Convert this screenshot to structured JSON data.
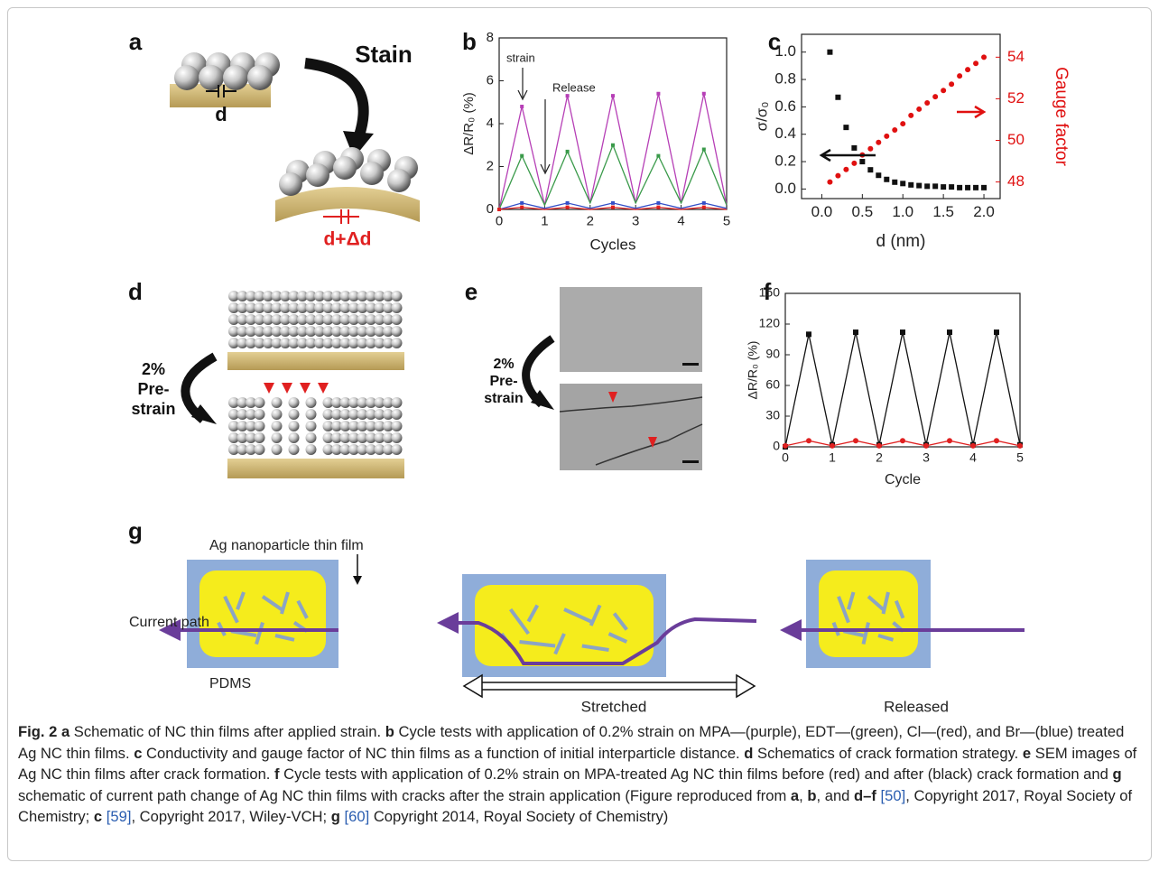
{
  "panels": {
    "a": "a",
    "b": "b",
    "c": "c",
    "d": "d",
    "e": "e",
    "f": "f",
    "g": "g"
  },
  "schematic_a": {
    "gap": "d",
    "action": "Stain",
    "gap_strained": "d+Δd"
  },
  "schematic_d": {
    "step": [
      "2%",
      "Pre-",
      "strain"
    ]
  },
  "schematic_e": {
    "step": [
      "2%",
      "Pre-",
      "strain"
    ]
  },
  "schematic_g": {
    "film": "Ag nanoparticle thin film",
    "path": "Current path",
    "substrate": "PDMS",
    "state_1": "Stretched",
    "state_2": "Released"
  },
  "chart_data": [
    {
      "type": "line",
      "ylabel": "ΔR/R₀ (%)",
      "xlabel": "Cycles",
      "annotations": [
        "strain",
        "Release"
      ],
      "x": [
        0,
        0.5,
        1,
        1.5,
        2,
        2.5,
        3,
        3.5,
        4,
        4.5,
        5
      ],
      "series": [
        {
          "color": "#b63fb6",
          "values": [
            0,
            4.8,
            0.2,
            5.3,
            0.3,
            5.3,
            0.3,
            5.4,
            0.3,
            5.4,
            0.2
          ]
        },
        {
          "color": "#3a9a4a",
          "values": [
            0,
            2.5,
            0.2,
            2.7,
            0.3,
            3.0,
            0.3,
            2.5,
            0.3,
            2.8,
            0.2
          ]
        },
        {
          "color": "#3550c8",
          "values": [
            0,
            0.3,
            0.05,
            0.3,
            0.05,
            0.3,
            0.05,
            0.3,
            0.05,
            0.3,
            0.05
          ]
        },
        {
          "color": "#e02020",
          "values": [
            0,
            0.1,
            0,
            0.1,
            0,
            0.1,
            0,
            0.1,
            0,
            0.1,
            0
          ]
        }
      ],
      "xlim": [
        0,
        5
      ],
      "xticks": [
        0,
        1,
        2,
        3,
        4,
        5
      ],
      "ylim": [
        0,
        8
      ],
      "yticks": [
        0,
        2,
        4,
        6,
        8
      ]
    },
    {
      "type": "scatter",
      "ylabel": "σ/σ₀",
      "y2label": "Gauge factor",
      "xlabel": "d (nm)",
      "x": [
        0.1,
        0.2,
        0.3,
        0.4,
        0.5,
        0.6,
        0.7,
        0.8,
        0.9,
        1.0,
        1.1,
        1.2,
        1.3,
        1.4,
        1.5,
        1.6,
        1.7,
        1.8,
        1.9,
        2.0
      ],
      "series": [
        {
          "color": "#111111",
          "values": [
            1.0,
            0.67,
            0.45,
            0.3,
            0.2,
            0.14,
            0.1,
            0.07,
            0.05,
            0.04,
            0.03,
            0.025,
            0.02,
            0.02,
            0.015,
            0.015,
            0.01,
            0.01,
            0.01,
            0.01
          ]
        },
        {
          "color": "#e01010",
          "axis": "y2",
          "values": [
            48.0,
            48.3,
            48.6,
            48.9,
            49.3,
            49.6,
            49.9,
            50.2,
            50.5,
            50.8,
            51.2,
            51.5,
            51.8,
            52.1,
            52.4,
            52.7,
            53.1,
            53.4,
            53.7,
            54.0
          ]
        }
      ],
      "xlim": [
        -0.25,
        2.2
      ],
      "xticks": [
        {
          "value": 0,
          "label": "0.0"
        },
        0.5,
        {
          "value": 1,
          "label": "1.0"
        },
        1.5,
        {
          "value": 2,
          "label": "2.0"
        }
      ],
      "ylim": [
        -0.07,
        1.13
      ],
      "yticks": [
        {
          "value": 0,
          "label": "0.0"
        },
        0.2,
        0.4,
        0.6,
        0.8,
        {
          "value": 1,
          "label": "1.0"
        }
      ],
      "y2lim": [
        47.2,
        55.1
      ],
      "y2ticks": [
        48,
        50,
        52,
        54
      ]
    },
    {
      "type": "line",
      "ylabel": "ΔR/R₀ (%)",
      "xlabel": "Cycle",
      "x": [
        0,
        0.5,
        1,
        1.5,
        2,
        2.5,
        3,
        3.5,
        4,
        4.5,
        5
      ],
      "series": [
        {
          "color": "#111111",
          "values": [
            0,
            110,
            2,
            112,
            2,
            112,
            2,
            112,
            2,
            112,
            2
          ]
        },
        {
          "color": "#e02020",
          "values": [
            1,
            6,
            1,
            6,
            1,
            6,
            1,
            6,
            1,
            6,
            1
          ]
        }
      ],
      "xlim": [
        0,
        5
      ],
      "xticks": [
        0,
        1,
        2,
        3,
        4,
        5
      ],
      "ylim": [
        0,
        150
      ],
      "yticks": [
        0,
        30,
        60,
        90,
        120,
        150
      ]
    }
  ],
  "caption": [
    {
      "text": "Fig. 2",
      "style": "bold"
    },
    {
      "text": " a",
      "style": "bold"
    },
    {
      "text": " Schematic of NC thin films after applied strain. ",
      "style": "normal"
    },
    {
      "text": "b",
      "style": "bold"
    },
    {
      "text": " Cycle tests with application of 0.2% strain on MPA—(purple), EDT—(green), Cl—(red), and Br—(blue) treated Ag NC thin films. ",
      "style": "normal"
    },
    {
      "text": "c",
      "style": "bold"
    },
    {
      "text": " Conductivity and gauge factor of NC thin films as a function of initial interparticle distance. ",
      "style": "normal"
    },
    {
      "text": "d",
      "style": "bold"
    },
    {
      "text": " Schematics of crack formation strategy. ",
      "style": "normal"
    },
    {
      "text": "e",
      "style": "bold"
    },
    {
      "text": " SEM images of Ag NC thin films after crack formation. ",
      "style": "normal"
    },
    {
      "text": "f",
      "style": "bold"
    },
    {
      "text": " Cycle tests with application of 0.2% strain on MPA-treated Ag NC thin films before (red) and after (black) crack formation and ",
      "style": "normal"
    },
    {
      "text": "g",
      "style": "bold"
    },
    {
      "text": " schematic of current path change of Ag NC thin films with cracks after the strain application (Figure reproduced from ",
      "style": "normal"
    },
    {
      "text": "a",
      "style": "bold"
    },
    {
      "text": ", ",
      "style": "normal"
    },
    {
      "text": "b",
      "style": "bold"
    },
    {
      "text": ", and ",
      "style": "normal"
    },
    {
      "text": "d–f ",
      "style": "bold"
    },
    {
      "text": "[50]",
      "style": "link"
    },
    {
      "text": ", Copyright 2017, Royal Society of Chemistry; ",
      "style": "normal"
    },
    {
      "text": "c ",
      "style": "bold"
    },
    {
      "text": "[59]",
      "style": "link"
    },
    {
      "text": ", Copyright 2017, Wiley-VCH; ",
      "style": "normal"
    },
    {
      "text": "g ",
      "style": "bold"
    },
    {
      "text": "[60]",
      "style": "link"
    },
    {
      "text": " Copyright 2014, Royal Society of Chemistry)",
      "style": "normal"
    }
  ]
}
